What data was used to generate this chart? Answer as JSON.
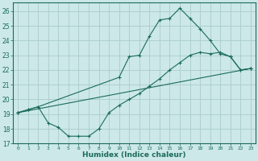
{
  "xlabel": "Humidex (Indice chaleur)",
  "bg_color": "#cce8e8",
  "grid_color": "#aacccc",
  "line_color": "#1a6b5a",
  "xlim": [
    -0.5,
    23.5
  ],
  "ylim": [
    17,
    26.6
  ],
  "yticks": [
    17,
    18,
    19,
    20,
    21,
    22,
    23,
    24,
    25,
    26
  ],
  "xticks": [
    0,
    1,
    2,
    3,
    4,
    5,
    6,
    7,
    8,
    9,
    10,
    11,
    12,
    13,
    14,
    15,
    16,
    17,
    18,
    19,
    20,
    21,
    22,
    23
  ],
  "line1_x": [
    0,
    1,
    2,
    10,
    11,
    12,
    13,
    14,
    15,
    16,
    17,
    18,
    19,
    20,
    21,
    22,
    23
  ],
  "line1_y": [
    19.1,
    19.3,
    19.5,
    21.5,
    22.9,
    23.0,
    24.3,
    25.4,
    25.5,
    26.2,
    25.5,
    24.8,
    24.0,
    23.1,
    22.9,
    22.0,
    22.1
  ],
  "line2_x": [
    0,
    1,
    2,
    3,
    4,
    5,
    6,
    7,
    8,
    9,
    10,
    11,
    12,
    13,
    14,
    15,
    16,
    17,
    18,
    19,
    20,
    21,
    22,
    23
  ],
  "line2_y": [
    19.1,
    19.3,
    19.5,
    18.4,
    18.1,
    17.5,
    17.5,
    17.5,
    18.0,
    19.1,
    19.6,
    20.0,
    20.4,
    20.9,
    21.4,
    22.0,
    22.5,
    23.0,
    23.2,
    23.1,
    23.2,
    22.9,
    22.0,
    22.1
  ],
  "line3_x": [
    0,
    23
  ],
  "line3_y": [
    19.1,
    22.1
  ]
}
